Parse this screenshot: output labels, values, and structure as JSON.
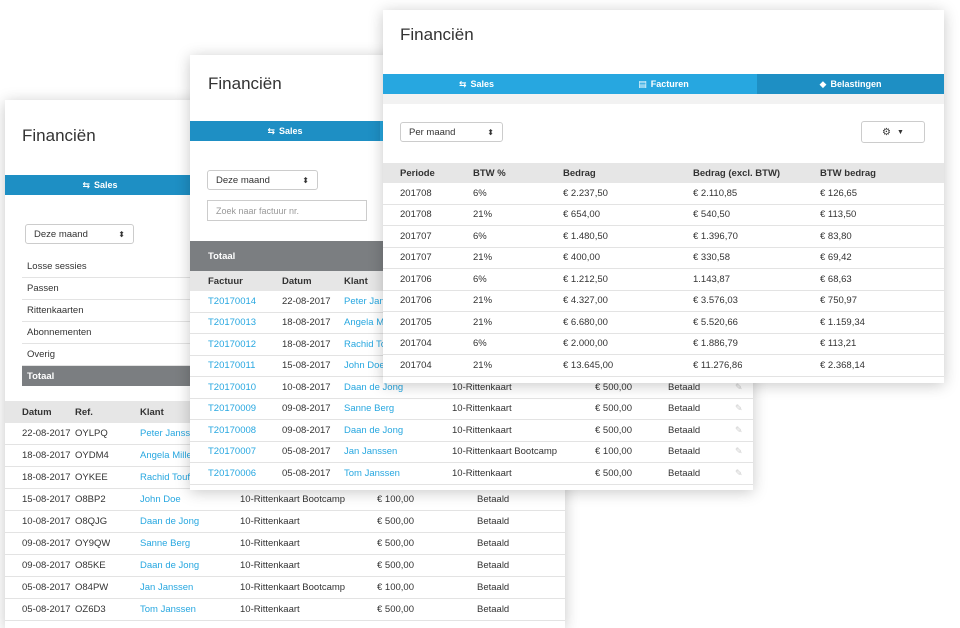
{
  "back": {
    "title": "Financiën",
    "tab_sales": "Sales",
    "period": "Deze maand",
    "categories": [
      "Losse sessies",
      "Passen",
      "Rittenkaarten",
      "Abonnementen",
      "Overig"
    ],
    "total": "Totaal",
    "headers": [
      "Datum",
      "Ref.",
      "Klant"
    ],
    "rows": [
      {
        "datum": "22-08-2017",
        "ref": "OYLPQ",
        "klant": "Peter Janssen",
        "product": "",
        "bedrag": "",
        "status": ""
      },
      {
        "datum": "18-08-2017",
        "ref": "OYDM4",
        "klant": "Angela Miller",
        "product": "",
        "bedrag": "",
        "status": ""
      },
      {
        "datum": "18-08-2017",
        "ref": "OYKEE",
        "klant": "Rachid Toufiq",
        "product": "",
        "bedrag": "",
        "status": ""
      },
      {
        "datum": "15-08-2017",
        "ref": "O8BP2",
        "klant": "John Doe",
        "product": "10-Rittenkaart Bootcamp",
        "bedrag": "€ 100,00",
        "status": "Betaald"
      },
      {
        "datum": "10-08-2017",
        "ref": "O8QJG",
        "klant": "Daan de Jong",
        "product": "10-Rittenkaart",
        "bedrag": "€ 500,00",
        "status": "Betaald"
      },
      {
        "datum": "09-08-2017",
        "ref": "OY9QW",
        "klant": "Sanne Berg",
        "product": "10-Rittenkaart",
        "bedrag": "€ 500,00",
        "status": "Betaald"
      },
      {
        "datum": "09-08-2017",
        "ref": "O85KE",
        "klant": "Daan de Jong",
        "product": "10-Rittenkaart",
        "bedrag": "€ 500,00",
        "status": "Betaald"
      },
      {
        "datum": "05-08-2017",
        "ref": "O84PW",
        "klant": "Jan Janssen",
        "product": "10-Rittenkaart Bootcamp",
        "bedrag": "€ 100,00",
        "status": "Betaald"
      },
      {
        "datum": "05-08-2017",
        "ref": "OZ6D3",
        "klant": "Tom Janssen",
        "product": "10-Rittenkaart",
        "bedrag": "€ 500,00",
        "status": "Betaald"
      }
    ]
  },
  "middle": {
    "title": "Financiën",
    "tab_sales": "Sales",
    "period": "Deze maand",
    "search_placeholder": "Zoek naar factuur nr.",
    "total": "Totaal",
    "headers": [
      "Factuur",
      "Datum",
      "Klant"
    ],
    "rows": [
      {
        "factuur": "T20170014",
        "datum": "22-08-2017",
        "klant": "Peter Janssen",
        "product": "",
        "bedrag": "",
        "status": ""
      },
      {
        "factuur": "T20170013",
        "datum": "18-08-2017",
        "klant": "Angela Miller",
        "product": "",
        "bedrag": "",
        "status": ""
      },
      {
        "factuur": "T20170012",
        "datum": "18-08-2017",
        "klant": "Rachid Toufiq",
        "product": "",
        "bedrag": "",
        "status": ""
      },
      {
        "factuur": "T20170011",
        "datum": "15-08-2017",
        "klant": "John Doe",
        "product": "",
        "bedrag": "",
        "status": ""
      },
      {
        "factuur": "T20170010",
        "datum": "10-08-2017",
        "klant": "Daan de Jong",
        "product": "10-Rittenkaart",
        "bedrag": "€ 500,00",
        "status": "Betaald"
      },
      {
        "factuur": "T20170009",
        "datum": "09-08-2017",
        "klant": "Sanne Berg",
        "product": "10-Rittenkaart",
        "bedrag": "€ 500,00",
        "status": "Betaald"
      },
      {
        "factuur": "T20170008",
        "datum": "09-08-2017",
        "klant": "Daan de Jong",
        "product": "10-Rittenkaart",
        "bedrag": "€ 500,00",
        "status": "Betaald"
      },
      {
        "factuur": "T20170007",
        "datum": "05-08-2017",
        "klant": "Jan Janssen",
        "product": "10-Rittenkaart Bootcamp",
        "bedrag": "€ 100,00",
        "status": "Betaald"
      },
      {
        "factuur": "T20170006",
        "datum": "05-08-2017",
        "klant": "Tom Janssen",
        "product": "10-Rittenkaart",
        "bedrag": "€ 500,00",
        "status": "Betaald"
      }
    ]
  },
  "front": {
    "title": "Financiën",
    "tabs": [
      "Sales",
      "Facturen",
      "Belastingen"
    ],
    "period": "Per maand",
    "headers": [
      "Periode",
      "BTW %",
      "Bedrag",
      "Bedrag (excl. BTW)",
      "BTW bedrag"
    ],
    "rows": [
      [
        "201708",
        "6%",
        "€ 2.237,50",
        "€ 2.110,85",
        "€ 126,65"
      ],
      [
        "201708",
        "21%",
        "€ 654,00",
        "€ 540,50",
        "€ 113,50"
      ],
      [
        "201707",
        "6%",
        "€ 1.480,50",
        "€ 1.396,70",
        "€ 83,80"
      ],
      [
        "201707",
        "21%",
        "€ 400,00",
        "€ 330,58",
        "€ 69,42"
      ],
      [
        "201706",
        "6%",
        "€ 1.212,50",
        "1.143,87",
        "€ 68,63"
      ],
      [
        "201706",
        "21%",
        "€ 4.327,00",
        "€ 3.576,03",
        "€ 750,97"
      ],
      [
        "201705",
        "21%",
        "€ 6.680,00",
        "€ 5.520,66",
        "€ 1.159,34"
      ],
      [
        "201704",
        "6%",
        "€ 2.000,00",
        "€ 1.886,79",
        "€ 113,21"
      ],
      [
        "201704",
        "21%",
        "€ 13.645,00",
        "€ 11.276,86",
        "€ 2.368,14"
      ]
    ]
  }
}
